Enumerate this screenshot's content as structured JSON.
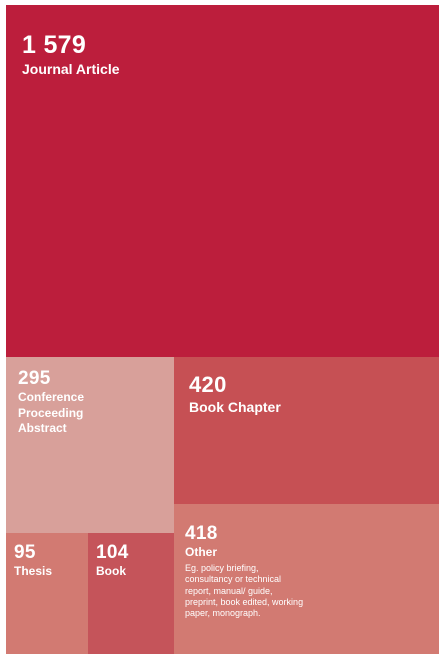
{
  "chart_data": {
    "type": "treemap",
    "title": "",
    "items": [
      {
        "id": "journal",
        "value": 1579,
        "value_label": "1 579",
        "label": "Journal Article",
        "description": "",
        "color": "#bc1e3c"
      },
      {
        "id": "conf",
        "value": 295,
        "value_label": "295",
        "label": "Conference Proceeding Abstract",
        "description": "",
        "color": "#d8a09a"
      },
      {
        "id": "chapter",
        "value": 420,
        "value_label": "420",
        "label": "Book Chapter",
        "description": "",
        "color": "#c65054"
      },
      {
        "id": "thesis",
        "value": 95,
        "value_label": "95",
        "label": "Thesis",
        "description": "",
        "color": "#d27a72"
      },
      {
        "id": "book",
        "value": 104,
        "value_label": "104",
        "label": "Book",
        "description": "",
        "color": "#c5545a"
      },
      {
        "id": "other",
        "value": 418,
        "value_label": "418",
        "label": "Other",
        "description": "Eg. policy briefing, consultancy or technical report, manual/ guide, preprint, book edited, working paper, monograph.",
        "color": "#d27a72"
      }
    ]
  }
}
